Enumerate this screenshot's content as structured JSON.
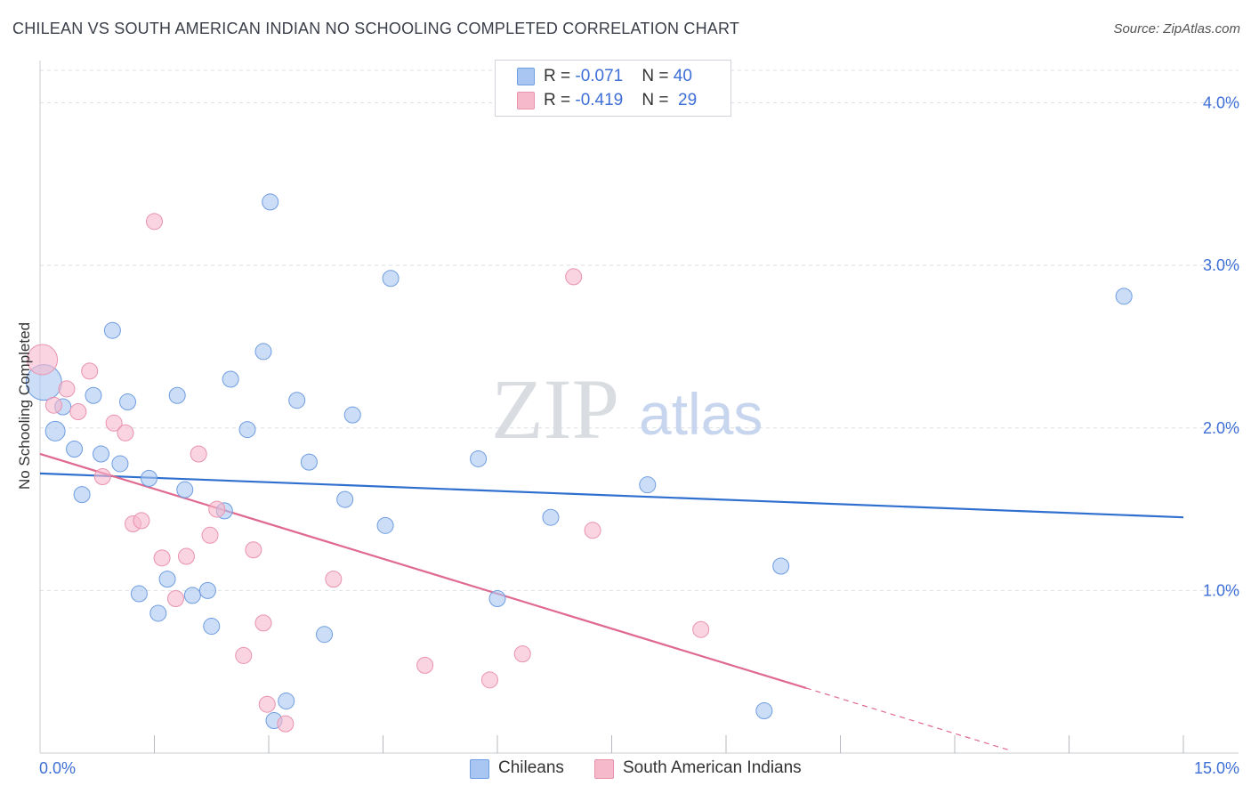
{
  "header": {
    "title": "CHILEAN VS SOUTH AMERICAN INDIAN NO SCHOOLING COMPLETED CORRELATION CHART",
    "source": "Source: ZipAtlas.com"
  },
  "watermark": {
    "zip": "ZIP",
    "atlas": "atlas"
  },
  "legend_top": {
    "rows": [
      {
        "r_label": "R = ",
        "r_value": "-0.071",
        "n_label": "N = ",
        "n_value": "40",
        "color": "#a9c6f2"
      },
      {
        "r_label": "R = ",
        "r_value": "-0.419",
        "n_label": "N = ",
        "n_value": "29",
        "color": "#f6b8cb"
      }
    ]
  },
  "legend_bottom": {
    "items": [
      {
        "label": "Chileans",
        "color": "#a9c6f2"
      },
      {
        "label": "South American Indians",
        "color": "#f6b8cb"
      }
    ]
  },
  "chart_data": {
    "type": "scatter",
    "title": "CHILEAN VS SOUTH AMERICAN INDIAN NO SCHOOLING COMPLETED CORRELATION CHART",
    "xlabel": "",
    "ylabel": "No Schooling Completed",
    "xlim": [
      0,
      15
    ],
    "ylim": [
      0,
      4.2
    ],
    "x_ticks": [
      {
        "value": 0,
        "label": "0.0%"
      },
      {
        "value": 15,
        "label": "15.0%"
      }
    ],
    "x_minor_ticks": [
      1.5,
      3.0,
      4.5,
      6.0,
      7.5,
      9.0,
      10.5,
      12.0,
      13.5,
      15.0
    ],
    "y_ticks": [
      {
        "value": 1.0,
        "label": "1.0%"
      },
      {
        "value": 2.0,
        "label": "2.0%"
      },
      {
        "value": 3.0,
        "label": "3.0%"
      },
      {
        "value": 4.0,
        "label": "4.0%"
      }
    ],
    "grid": "horizontal dashed",
    "legend_position": "bottom",
    "series": [
      {
        "name": "Chileans",
        "color": "#a9c6f2",
        "stroke": "#6f9de0",
        "line_color": "#2f6fcf",
        "trend": {
          "x": [
            0,
            15
          ],
          "y": [
            1.72,
            1.45
          ]
        },
        "points": [
          {
            "x": 0.05,
            "y": 2.28,
            "s": 20
          },
          {
            "x": 0.2,
            "y": 1.98,
            "s": 11
          },
          {
            "x": 0.3,
            "y": 2.13,
            "s": 9
          },
          {
            "x": 0.45,
            "y": 1.87,
            "s": 9
          },
          {
            "x": 0.55,
            "y": 1.59,
            "s": 9
          },
          {
            "x": 0.7,
            "y": 2.2,
            "s": 9
          },
          {
            "x": 0.8,
            "y": 1.84,
            "s": 9
          },
          {
            "x": 0.95,
            "y": 2.6,
            "s": 9
          },
          {
            "x": 1.05,
            "y": 1.78,
            "s": 9
          },
          {
            "x": 1.15,
            "y": 2.16,
            "s": 9
          },
          {
            "x": 1.3,
            "y": 0.98,
            "s": 9
          },
          {
            "x": 1.43,
            "y": 1.69,
            "s": 9
          },
          {
            "x": 1.55,
            "y": 0.86,
            "s": 9
          },
          {
            "x": 1.67,
            "y": 1.07,
            "s": 9
          },
          {
            "x": 1.8,
            "y": 2.2,
            "s": 9
          },
          {
            "x": 1.9,
            "y": 1.62,
            "s": 9
          },
          {
            "x": 2.0,
            "y": 0.97,
            "s": 9
          },
          {
            "x": 2.2,
            "y": 1.0,
            "s": 9
          },
          {
            "x": 2.25,
            "y": 0.78,
            "s": 9
          },
          {
            "x": 2.42,
            "y": 1.49,
            "s": 9
          },
          {
            "x": 2.5,
            "y": 2.3,
            "s": 9
          },
          {
            "x": 2.72,
            "y": 1.99,
            "s": 9
          },
          {
            "x": 2.93,
            "y": 2.47,
            "s": 9
          },
          {
            "x": 3.02,
            "y": 3.39,
            "s": 9
          },
          {
            "x": 3.07,
            "y": 0.2,
            "s": 9
          },
          {
            "x": 3.23,
            "y": 0.32,
            "s": 9
          },
          {
            "x": 3.37,
            "y": 2.17,
            "s": 9
          },
          {
            "x": 3.53,
            "y": 1.79,
            "s": 9
          },
          {
            "x": 3.73,
            "y": 0.73,
            "s": 9
          },
          {
            "x": 4.0,
            "y": 1.56,
            "s": 9
          },
          {
            "x": 4.1,
            "y": 2.08,
            "s": 9
          },
          {
            "x": 4.53,
            "y": 1.4,
            "s": 9
          },
          {
            "x": 4.6,
            "y": 2.92,
            "s": 9
          },
          {
            "x": 5.75,
            "y": 1.81,
            "s": 9
          },
          {
            "x": 6.0,
            "y": 0.95,
            "s": 9
          },
          {
            "x": 6.7,
            "y": 1.45,
            "s": 9
          },
          {
            "x": 7.97,
            "y": 1.65,
            "s": 9
          },
          {
            "x": 9.5,
            "y": 0.26,
            "s": 9
          },
          {
            "x": 9.72,
            "y": 1.15,
            "s": 9
          },
          {
            "x": 14.22,
            "y": 2.81,
            "s": 9
          }
        ]
      },
      {
        "name": "South American Indians",
        "color": "#f6b8cb",
        "stroke": "#e993ad",
        "line_color": "#e0698f",
        "trend": {
          "x": [
            0,
            10.05
          ],
          "y": [
            1.84,
            0.4
          ]
        },
        "trend_dashed": {
          "x": [
            10.05,
            12.7
          ],
          "y": [
            0.4,
            0.02
          ]
        },
        "points": [
          {
            "x": 0.03,
            "y": 2.42,
            "s": 17
          },
          {
            "x": 0.18,
            "y": 2.14,
            "s": 9
          },
          {
            "x": 0.35,
            "y": 2.24,
            "s": 9
          },
          {
            "x": 0.5,
            "y": 2.1,
            "s": 9
          },
          {
            "x": 0.65,
            "y": 2.35,
            "s": 9
          },
          {
            "x": 0.82,
            "y": 1.7,
            "s": 9
          },
          {
            "x": 0.97,
            "y": 2.03,
            "s": 9
          },
          {
            "x": 1.12,
            "y": 1.97,
            "s": 9
          },
          {
            "x": 1.22,
            "y": 1.41,
            "s": 9
          },
          {
            "x": 1.33,
            "y": 1.43,
            "s": 9
          },
          {
            "x": 1.5,
            "y": 3.27,
            "s": 9
          },
          {
            "x": 1.6,
            "y": 1.2,
            "s": 9
          },
          {
            "x": 1.78,
            "y": 0.95,
            "s": 9
          },
          {
            "x": 1.92,
            "y": 1.21,
            "s": 9
          },
          {
            "x": 2.08,
            "y": 1.84,
            "s": 9
          },
          {
            "x": 2.23,
            "y": 1.34,
            "s": 9
          },
          {
            "x": 2.32,
            "y": 1.5,
            "s": 9
          },
          {
            "x": 2.67,
            "y": 0.6,
            "s": 9
          },
          {
            "x": 2.8,
            "y": 1.25,
            "s": 9
          },
          {
            "x": 2.93,
            "y": 0.8,
            "s": 9
          },
          {
            "x": 2.98,
            "y": 0.3,
            "s": 9
          },
          {
            "x": 3.22,
            "y": 0.18,
            "s": 9
          },
          {
            "x": 3.85,
            "y": 1.07,
            "s": 9
          },
          {
            "x": 5.05,
            "y": 0.54,
            "s": 9
          },
          {
            "x": 5.9,
            "y": 0.45,
            "s": 9
          },
          {
            "x": 6.33,
            "y": 0.61,
            "s": 9
          },
          {
            "x": 7.0,
            "y": 2.93,
            "s": 9
          },
          {
            "x": 7.25,
            "y": 1.37,
            "s": 9
          },
          {
            "x": 8.67,
            "y": 0.76,
            "s": 9
          }
        ]
      }
    ]
  }
}
